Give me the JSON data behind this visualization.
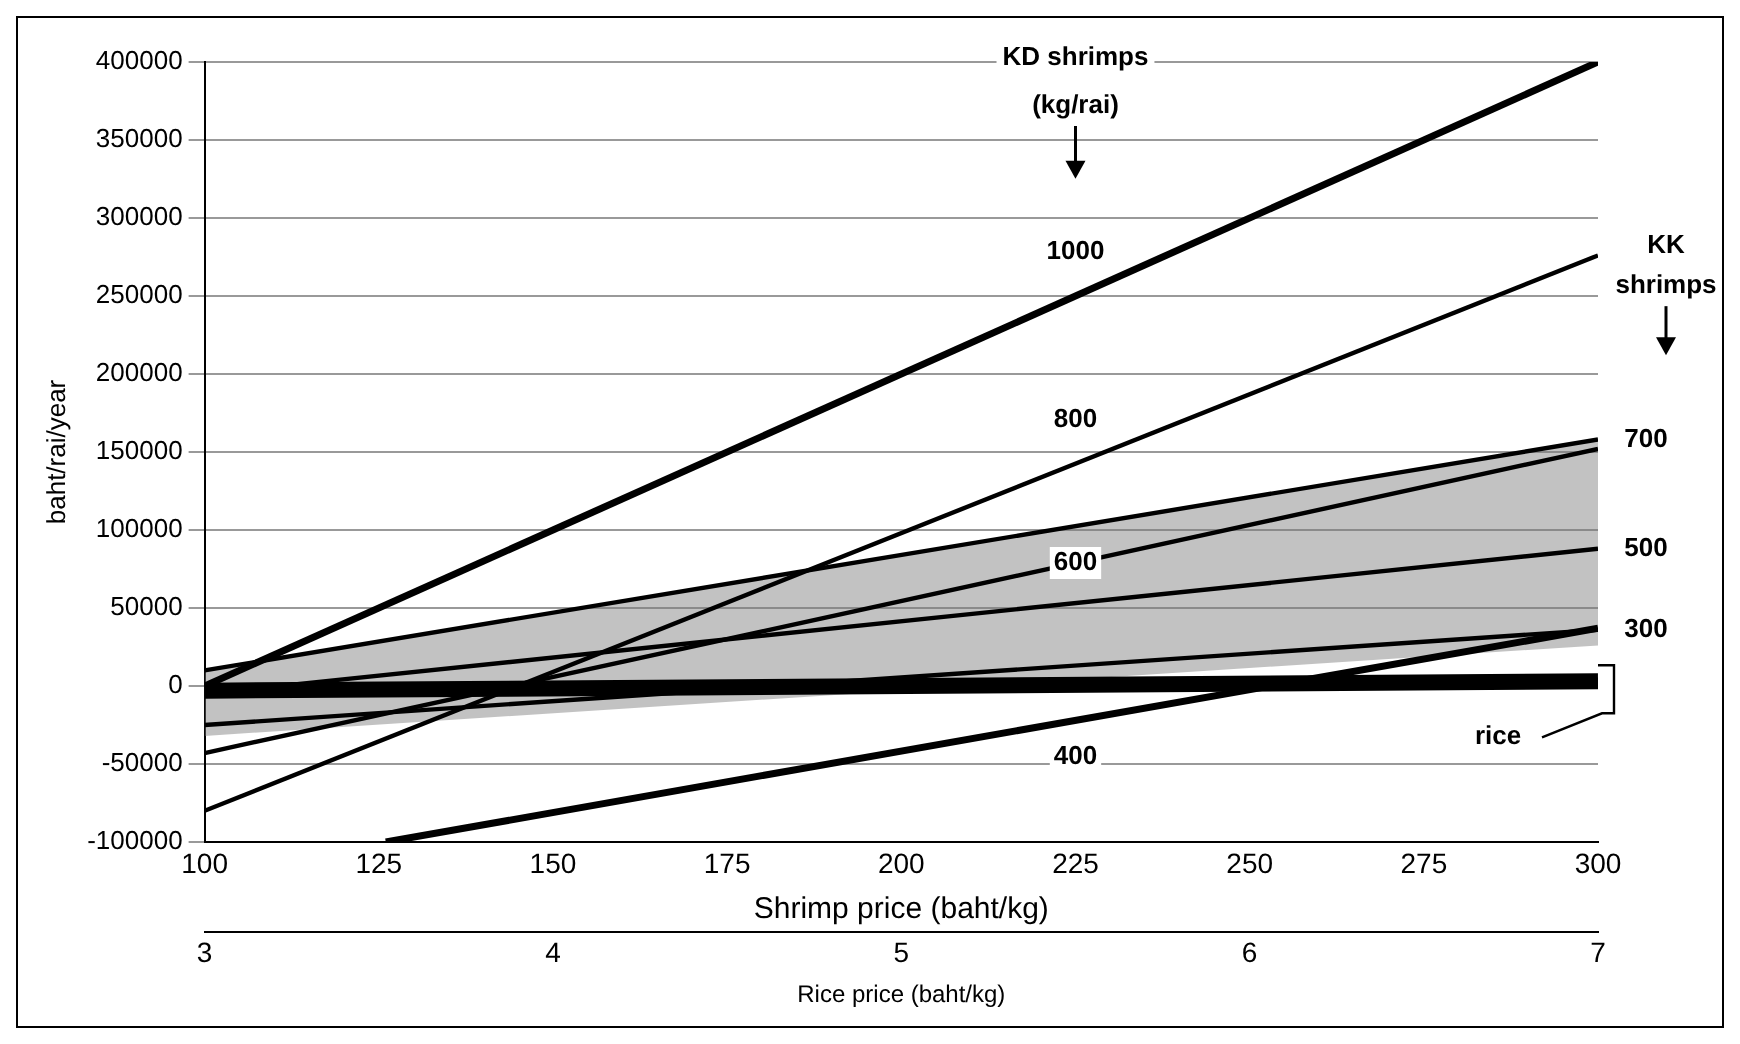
{
  "chart_data": {
    "type": "line",
    "ylabel": "baht/rai/year",
    "xlabel": "Shrimp price (baht/kg)",
    "x2label": "Rice price (baht/kg)",
    "xlim": [
      100,
      300
    ],
    "xticks": [
      100,
      125,
      150,
      175,
      200,
      225,
      250,
      275,
      300
    ],
    "x2lim": [
      3,
      7
    ],
    "x2ticks": [
      3,
      4,
      5,
      6,
      7
    ],
    "ylim": [
      -100000,
      400000
    ],
    "yticks": [
      -100000,
      -50000,
      0,
      50000,
      100000,
      150000,
      200000,
      250000,
      300000,
      350000,
      400000
    ],
    "grid": "y",
    "legend": false,
    "marker": "none",
    "line_style": "solid",
    "annotations": [
      "KD shrimps",
      "(kg/rai)",
      "KK",
      "shrimps"
    ],
    "series": [
      {
        "name": "1000",
        "color": "#000000",
        "x": [
          100,
          300
        ],
        "values": [
          0,
          400000
        ]
      },
      {
        "name": "800",
        "color": "#000000",
        "x": [
          100,
          300
        ],
        "values": [
          -80000,
          276000
        ]
      },
      {
        "name": "600",
        "color": "#000000",
        "x": [
          100,
          300
        ],
        "values": [
          -43000,
          152000
        ]
      },
      {
        "name": "400",
        "color": "#000000",
        "x": [
          126,
          300
        ],
        "values": [
          -100000,
          37000
        ]
      },
      {
        "name": "700",
        "color": "#000000",
        "x": [
          100,
          300
        ],
        "values": [
          10000,
          158000
        ]
      },
      {
        "name": "500",
        "color": "#000000",
        "x": [
          100,
          300
        ],
        "values": [
          -5000,
          88000
        ],
        "lower": [
          -32000,
          26000
        ],
        "upper": [
          10000,
          158000
        ]
      },
      {
        "name": "300",
        "color": "#000000",
        "x": [
          100,
          300
        ],
        "values": [
          -25000,
          36000
        ]
      },
      {
        "name": "rice",
        "color": "#000000",
        "axis": "x2",
        "x": [
          3,
          7
        ],
        "values": [
          -3000,
          3000
        ]
      }
    ]
  }
}
